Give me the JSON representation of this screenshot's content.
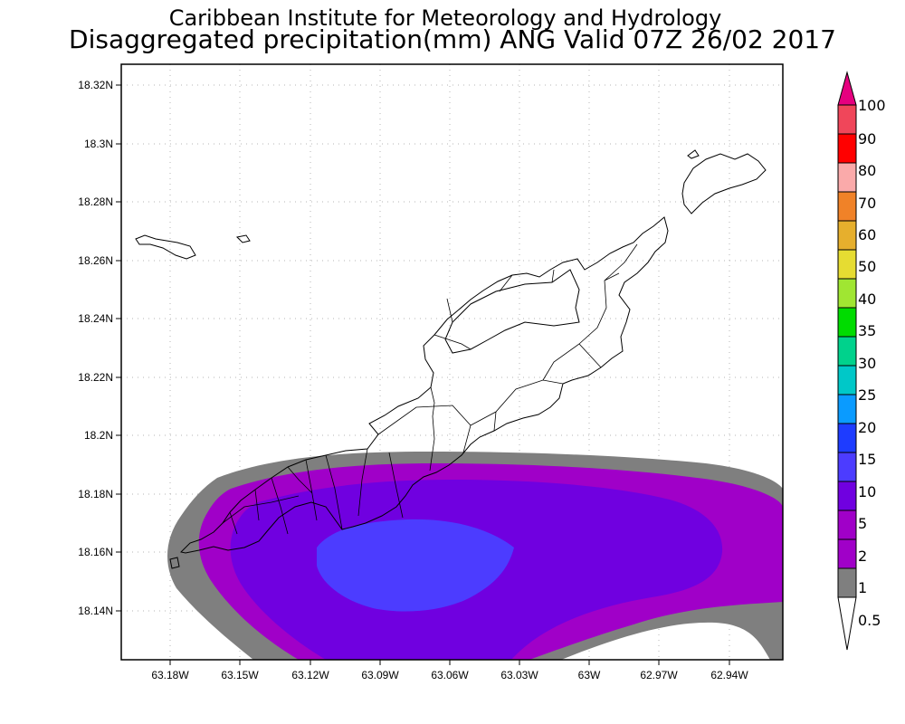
{
  "header": {
    "title": "Caribbean Institute for Meteorology and Hydrology",
    "subtitle": "Disaggregated precipitation(mm) ANG Valid 07Z 26/02 2017"
  },
  "map": {
    "lat_range": [
      18.124,
      18.328
    ],
    "lon_range": [
      -63.193,
      -62.923
    ],
    "lat_ticks": [
      "18.14N",
      "18.16N",
      "18.18N",
      "18.2N",
      "18.22N",
      "18.24N",
      "18.26N",
      "18.28N",
      "18.3N",
      "18.32N"
    ],
    "lon_ticks": [
      "63.18W",
      "63.15W",
      "63.12W",
      "63.09W",
      "63.06W",
      "63.03W",
      "63W",
      "62.97W",
      "62.94W"
    ],
    "grid": true,
    "features": [
      "Anguilla coastline",
      "parish boundaries",
      "precipitation contours"
    ]
  },
  "legend": {
    "levels": [
      "0.5",
      "1",
      "2",
      "5",
      "10",
      "15",
      "20",
      "25",
      "30",
      "35",
      "40",
      "50",
      "60",
      "70",
      "80",
      "90",
      "100"
    ],
    "colors": [
      "#ffffff",
      "#7f7f7f",
      "#a000c8",
      "#7000e0",
      "#4c3cff",
      "#1e3cff",
      "#0a9bff",
      "#00c8c8",
      "#00d28c",
      "#00dc00",
      "#a0e632",
      "#e6dc32",
      "#e6af2d",
      "#f08228",
      "#faaaaa",
      "#ff0000",
      "#f0465a",
      "#e6007f"
    ]
  }
}
